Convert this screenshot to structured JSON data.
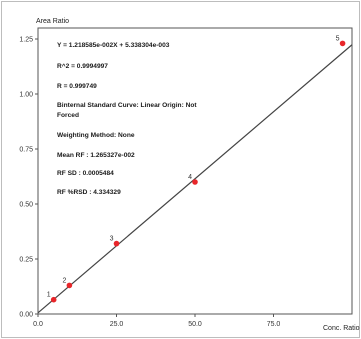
{
  "chart_data": {
    "type": "scatter",
    "ylabel": "Area Ratio",
    "xlabel": "Conc. Ratio",
    "xlim": [
      0,
      100
    ],
    "ylim": [
      0,
      1.3
    ],
    "xticks": [
      0,
      25,
      50,
      75
    ],
    "xtick_labels": [
      "0.0",
      "25.0",
      "50.0",
      "75.0"
    ],
    "yticks": [
      0,
      0.25,
      0.5,
      0.75,
      1.0,
      1.25
    ],
    "ytick_labels": [
      "0.00",
      "0.25",
      "0.50",
      "0.75",
      "1.00",
      "1.25"
    ],
    "grid": false,
    "colors": {
      "points": "#e8262a",
      "line": "#444444",
      "frame": "#555555"
    },
    "fit_line": {
      "x": [
        0,
        100
      ],
      "y": [
        0.0053,
        1.2239
      ]
    },
    "points": [
      {
        "label": "1",
        "x": 5,
        "y": 0.065
      },
      {
        "label": "2",
        "x": 10,
        "y": 0.13
      },
      {
        "label": "3",
        "x": 25,
        "y": 0.32
      },
      {
        "label": "4",
        "x": 50,
        "y": 0.6
      },
      {
        "label": "5",
        "x": 97,
        "y": 1.23
      }
    ],
    "annotations": [
      "Y = 1.218585e-002X + 5.338304e-003",
      "R^2 = 0.9994997",
      "R = 0.999749",
      "Binternal Standard Curve: Linear Origin: Not",
      "Forced",
      "Weighting Method: None",
      "Mean RF :  1.265327e-002",
      "RF SD : 0.0005484",
      "RF %RSD : 4.334329"
    ]
  }
}
